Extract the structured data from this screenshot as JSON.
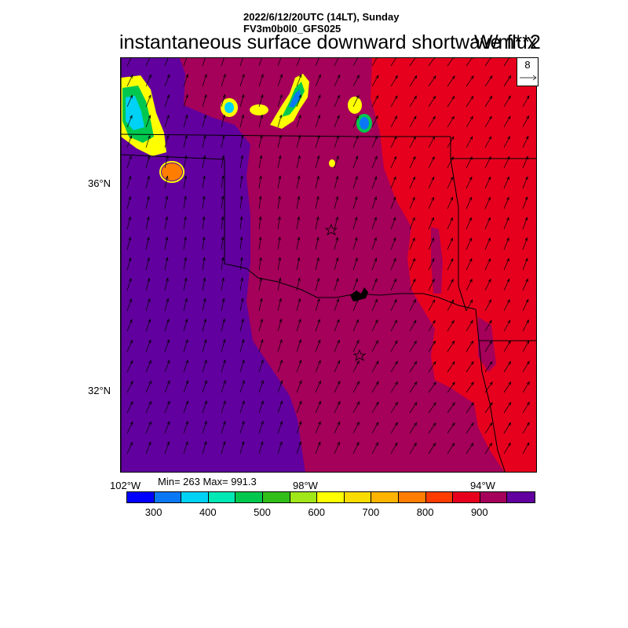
{
  "header": {
    "date_line": "2022/6/12/20UTC (14LT), Sunday",
    "model_line": "FV3m0b0l0_GFS025",
    "title": "instantaneous surface downward shortwave flux",
    "unit": "W/m**2"
  },
  "reference_vector": {
    "label": "8"
  },
  "axes": {
    "lat_labels": [
      "36°N",
      "32°N"
    ],
    "lon_labels": [
      "102°W",
      "98°W",
      "94°W"
    ]
  },
  "stats": {
    "text": "Min= 263 Max= 991.3"
  },
  "colorbar": {
    "colors": [
      "#0000ff",
      "#0a78f5",
      "#00d2f5",
      "#00e8b4",
      "#00c84e",
      "#32be19",
      "#a0e619",
      "#ffff00",
      "#fadc00",
      "#fcb400",
      "#ff7d00",
      "#ff3c00",
      "#e6001e",
      "#a5005a",
      "#61009e"
    ],
    "tick_labels": [
      "300",
      "400",
      "500",
      "600",
      "700",
      "800",
      "900"
    ]
  },
  "map": {
    "colors": {
      "low_magenta": "#a5005a",
      "purple": "#61009e",
      "red": "#e6001e",
      "cloud_yellow": "#ffff00",
      "cloud_cyan": "#00d2f5",
      "cloud_green": "#00c84e",
      "cloud_blue": "#0a78f5",
      "cloud_orange": "#ff7d00"
    },
    "city_markers": 2
  }
}
